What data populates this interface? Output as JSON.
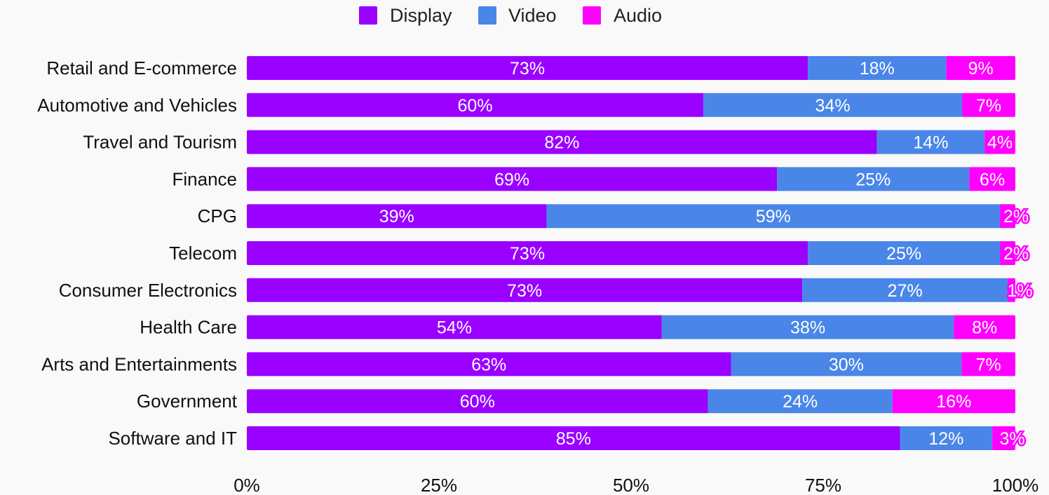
{
  "chart_data": {
    "type": "bar",
    "orientation": "horizontal",
    "stacked": true,
    "normalized": true,
    "categories": [
      "Retail and E-commerce",
      "Automotive and Vehicles",
      "Travel and Tourism",
      "Finance",
      "CPG",
      "Telecom",
      "Consumer Electronics",
      "Health Care",
      "Arts and Entertainments",
      "Government",
      "Software and IT"
    ],
    "series": [
      {
        "name": "Display",
        "color": "#9900ff",
        "values": [
          73,
          60,
          82,
          69,
          39,
          73,
          73,
          54,
          63,
          60,
          85
        ]
      },
      {
        "name": "Video",
        "color": "#4a86e8",
        "values": [
          18,
          34,
          14,
          25,
          59,
          25,
          27,
          38,
          30,
          24,
          12
        ]
      },
      {
        "name": "Audio",
        "color": "#ff00ff",
        "values": [
          9,
          7,
          4,
          6,
          2,
          2,
          1,
          8,
          7,
          16,
          3
        ]
      }
    ],
    "data_labels": [
      [
        "73%",
        "60%",
        "82%",
        "69%",
        "39%",
        "73%",
        "73%",
        "54%",
        "63%",
        "60%",
        "85%"
      ],
      [
        "18%",
        "34%",
        "14%",
        "25%",
        "59%",
        "25%",
        "27%",
        "38%",
        "30%",
        "24%",
        "12%"
      ],
      [
        "9%",
        "7%",
        "4%",
        "6%",
        "2%",
        "2%",
        "1%",
        "8%",
        "7%",
        "16%",
        "3%"
      ]
    ],
    "x_ticks": [
      "0%",
      "25%",
      "50%",
      "75%",
      "100%"
    ],
    "xlim": [
      0,
      100
    ],
    "legend_position": "top",
    "grid": false
  }
}
